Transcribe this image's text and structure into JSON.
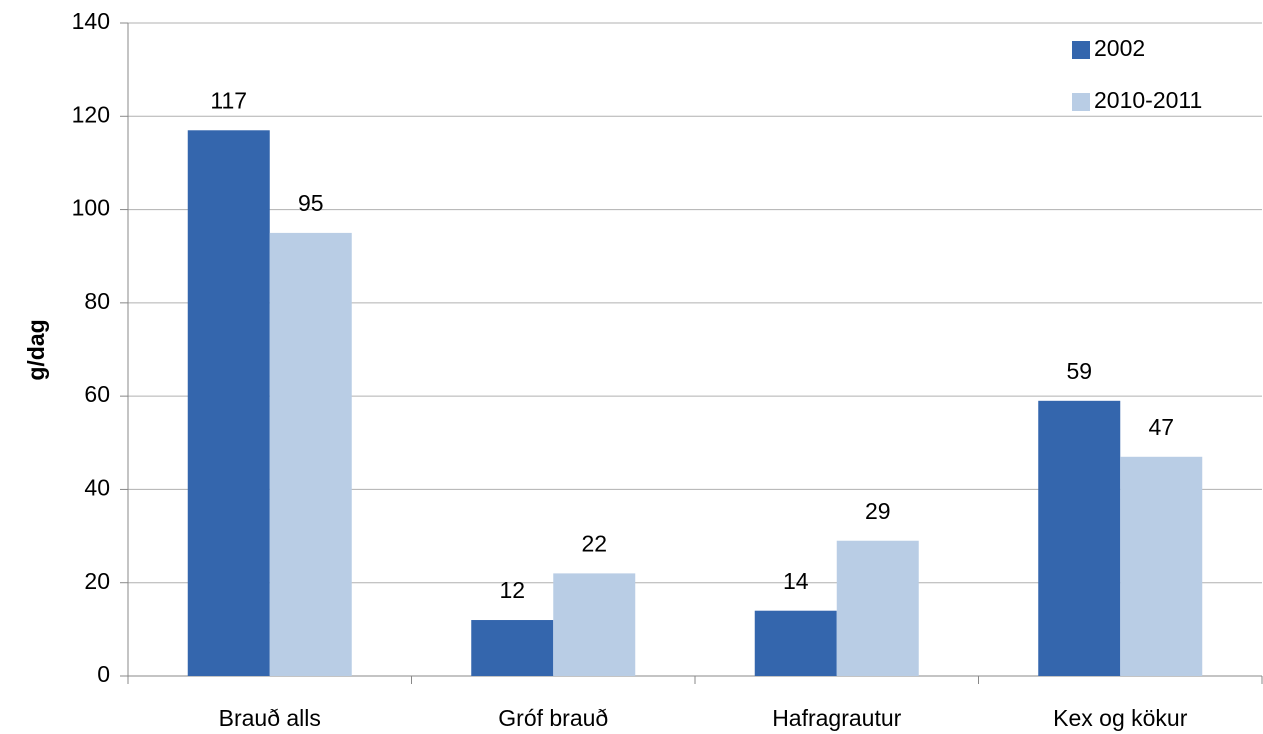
{
  "chart_data": {
    "type": "bar",
    "y_label": "g/dag",
    "categories": [
      "Brauð alls",
      "Gróf brauð",
      "Hafragrautur",
      "Kex og kökur"
    ],
    "series": [
      {
        "name": "2002",
        "color": "#3466ad",
        "values": [
          117,
          12,
          14,
          59
        ]
      },
      {
        "name": "2010-2011",
        "color": "#b9cde5",
        "values": [
          95,
          22,
          29,
          47
        ]
      }
    ],
    "ylim": [
      0,
      140
    ],
    "yticks": [
      0,
      20,
      40,
      60,
      80,
      100,
      120,
      140
    ],
    "grid": true,
    "legend": "top-right"
  }
}
